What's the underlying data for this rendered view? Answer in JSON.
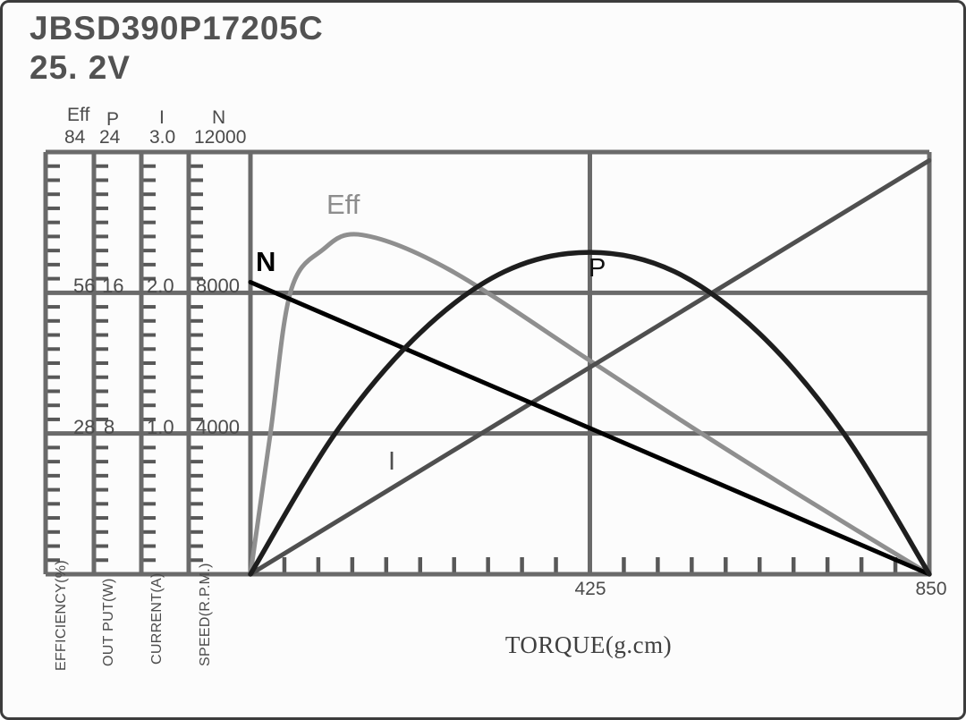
{
  "title": {
    "model": "JBSD390P17205C",
    "voltage": "25. 2V"
  },
  "chart_data": {
    "type": "line",
    "title": "JBSD390P17205C 25.2V motor performance curves",
    "x_axis": {
      "label": "TORQUE(g.cm)",
      "min": 0,
      "max": 850,
      "tick_labels": [
        "425",
        "850"
      ],
      "tick_values": [
        425,
        850
      ],
      "minor_tick_step": 42.5,
      "grid": "on at 425"
    },
    "y_axes": [
      {
        "id": "eff",
        "name": "Eff",
        "unit": "EFFICIENCY(%)",
        "min": 0,
        "max": 84,
        "tick_labels": [
          "84",
          "56",
          "28"
        ]
      },
      {
        "id": "p",
        "name": "P",
        "unit": "OUT PUT(W)",
        "min": 0,
        "max": 24,
        "tick_labels": [
          "24",
          "16",
          "8"
        ]
      },
      {
        "id": "i",
        "name": "I",
        "unit": "CURRENT(A)",
        "min": 0,
        "max": 3.0,
        "tick_labels": [
          "3.0",
          "2.0",
          "1.0"
        ]
      },
      {
        "id": "n",
        "name": "N",
        "unit": "SPEED(R.P.M.)",
        "min": 0,
        "max": 12000,
        "tick_labels": [
          "12000",
          "8000",
          "4000"
        ]
      }
    ],
    "series": [
      {
        "name": "Eff",
        "axis": "eff",
        "color": "#8f8f8f",
        "width": 5,
        "points": [
          [
            0,
            0
          ],
          [
            25,
            28
          ],
          [
            50,
            56
          ],
          [
            90,
            64.5
          ],
          [
            140,
            67.5
          ],
          [
            250,
            60.5
          ],
          [
            425,
            42.5
          ],
          [
            560,
            28.5
          ],
          [
            700,
            14.5
          ],
          [
            850,
            0
          ]
        ]
      },
      {
        "name": "I",
        "axis": "i",
        "color": "#4f4f4f",
        "width": 5,
        "points": [
          [
            0,
            0
          ],
          [
            850,
            2.94
          ]
        ]
      },
      {
        "name": "N",
        "axis": "n",
        "color": "#000000",
        "width": 5,
        "points": [
          [
            0,
            8300
          ],
          [
            850,
            0
          ]
        ]
      },
      {
        "name": "P",
        "axis": "p",
        "color": "#1e1e1e",
        "width": 5.5,
        "points": [
          [
            0,
            0
          ],
          [
            106,
            8.0
          ],
          [
            212,
            13.7
          ],
          [
            318,
            17.2
          ],
          [
            425,
            18.3
          ],
          [
            531,
            17.2
          ],
          [
            637,
            13.7
          ],
          [
            743,
            8.0
          ],
          [
            850,
            0
          ]
        ]
      }
    ],
    "legend_position": "labels on curves",
    "grid_color": "#6a6a6a"
  }
}
